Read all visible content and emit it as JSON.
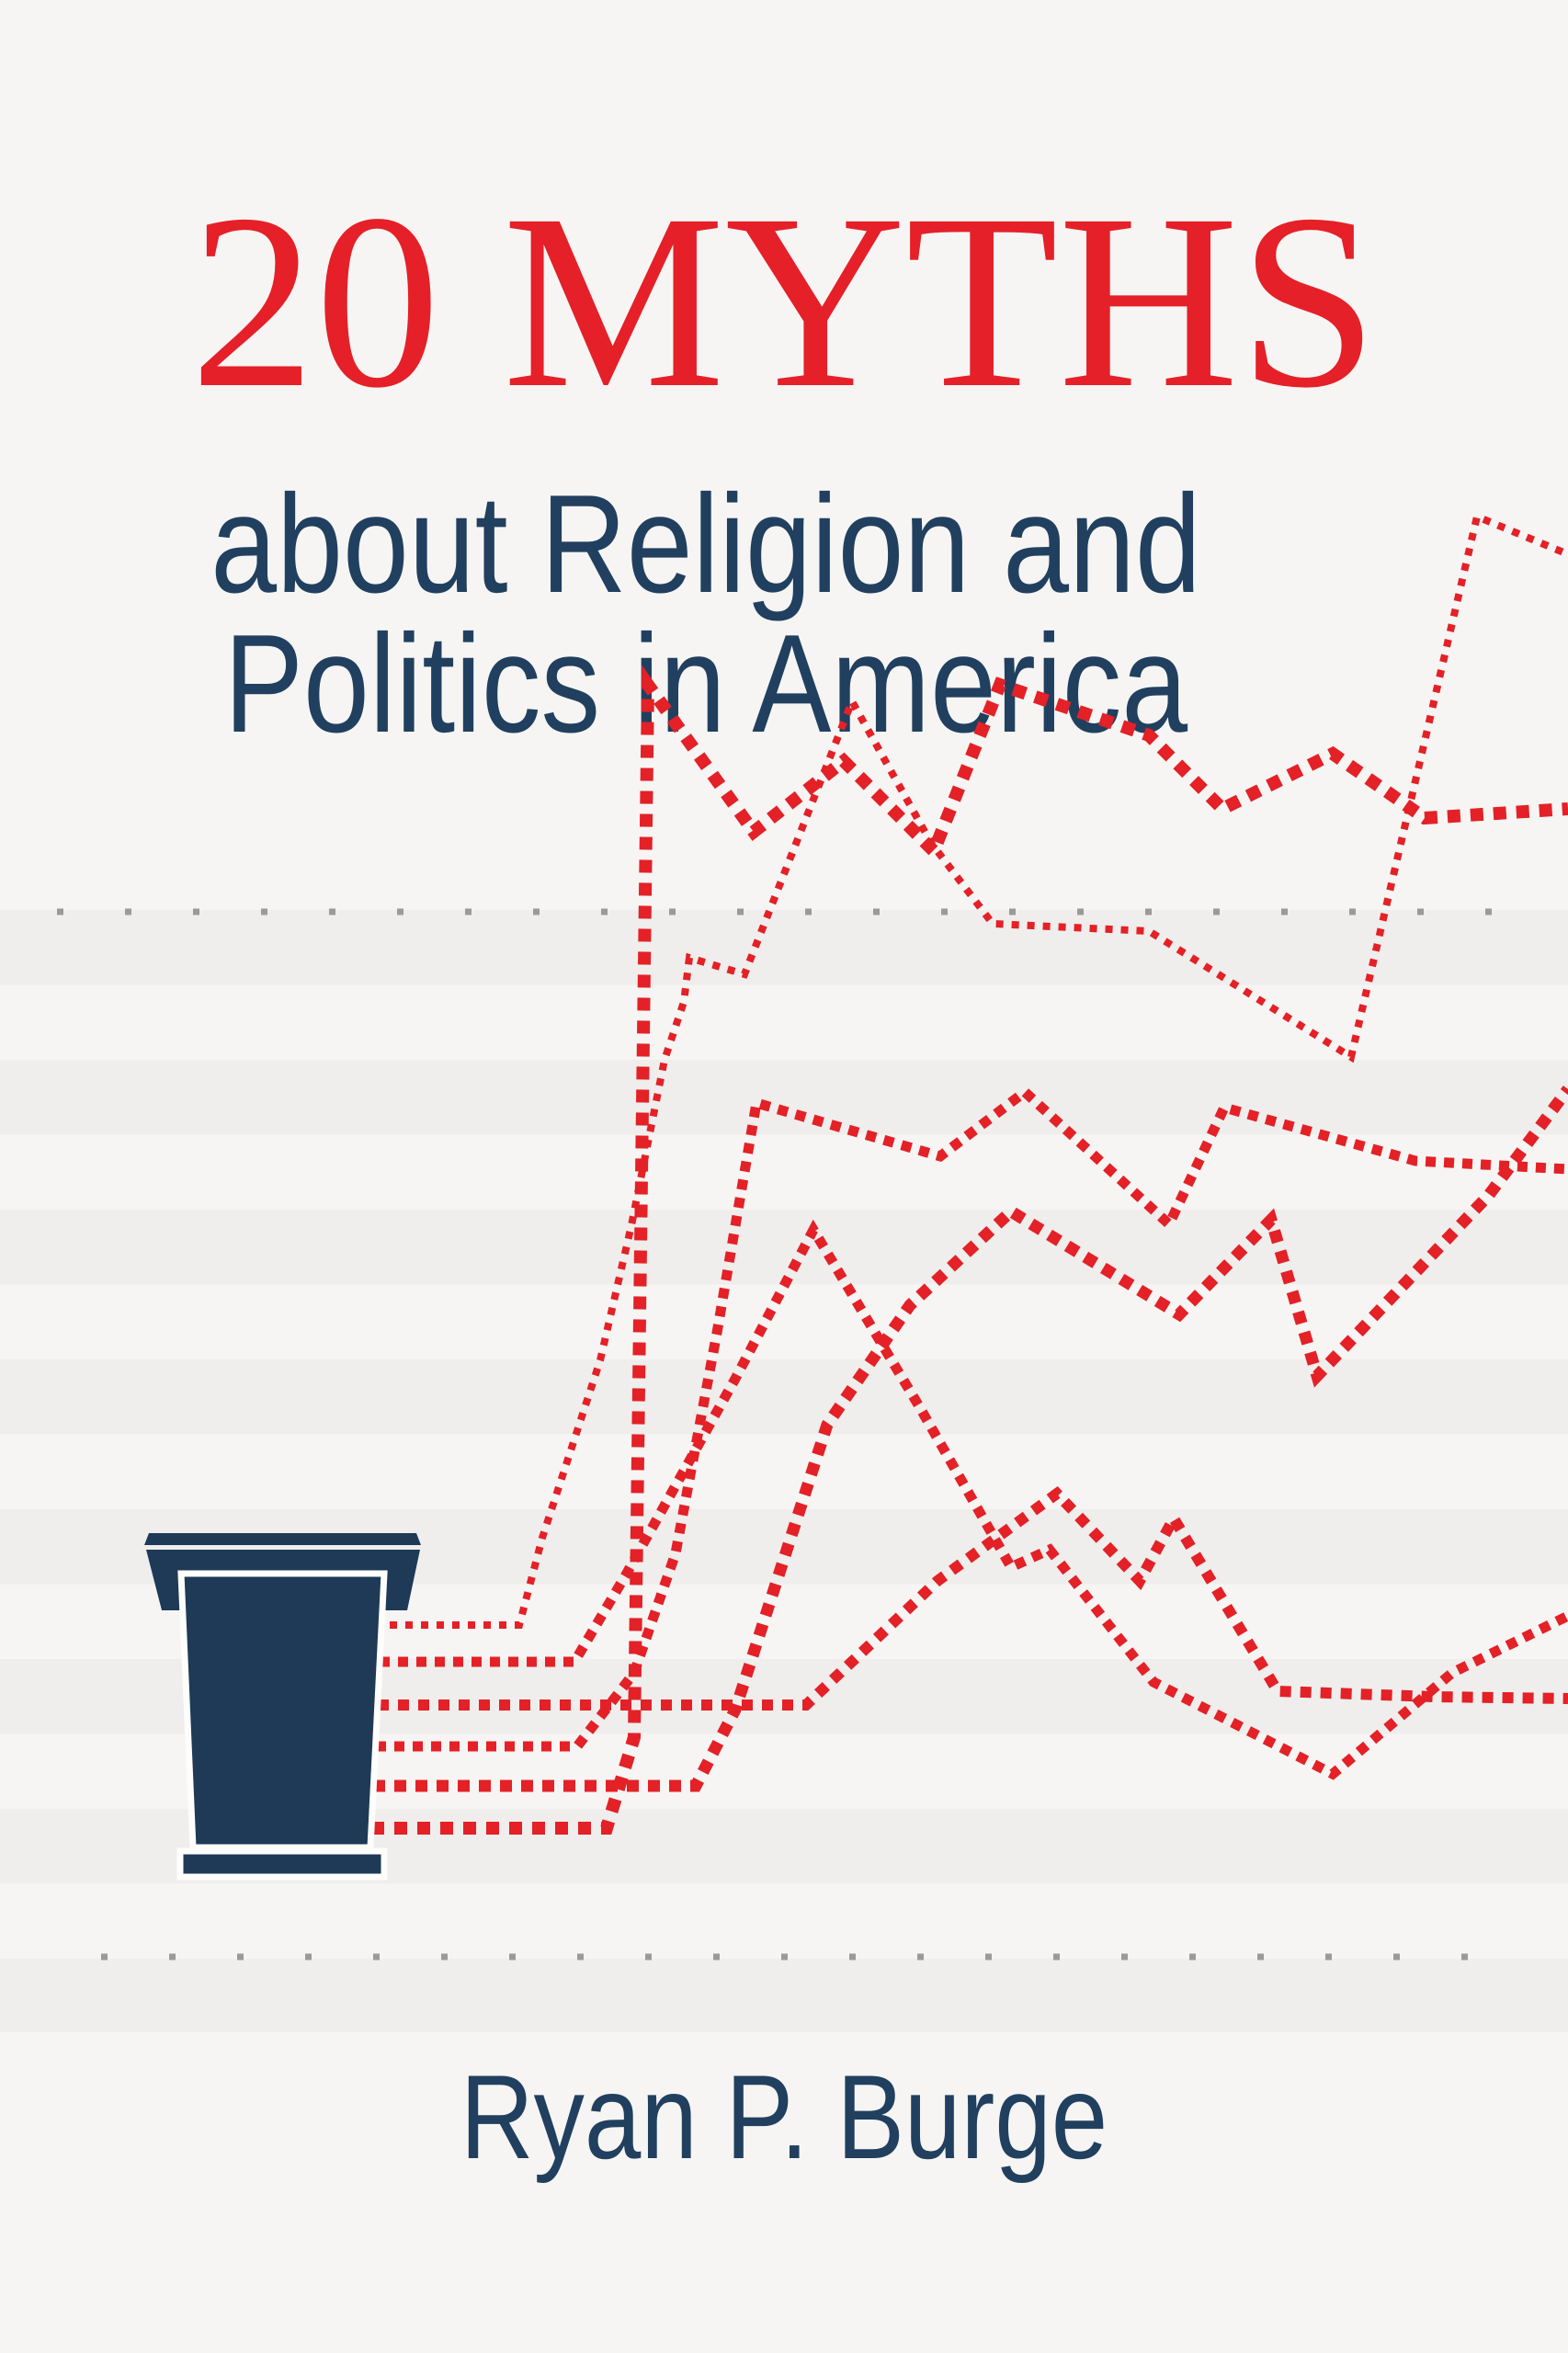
{
  "title": "20 MYTHS",
  "subtitle": {
    "line1": "about Religion and",
    "line2": "Politics in America"
  },
  "author": "Ryan P. Burge",
  "colors": {
    "background": "#f6f5f3",
    "stripe": "#efeeec",
    "title_red": "#e52028",
    "line_red": "#e32127",
    "navy_text": "#21405f",
    "podium_navy": "#1e3a57",
    "podium_outline": "#fdfdfc",
    "tick_gray": "#9a9a9a"
  },
  "chart_data": {
    "type": "line",
    "title": "",
    "xlabel": "",
    "ylabel": "",
    "note": "decorative dotted polylines radiating from podium; pixel coordinates in 1706x2560 space",
    "tick_rows": [
      {
        "name": "top-tick-row",
        "y": 992,
        "x1": 62,
        "x2": 1650,
        "width": 7,
        "dash": "7 67"
      },
      {
        "name": "bottom-tick-row",
        "y": 2129,
        "x1": 110,
        "x2": 1620,
        "width": 7,
        "dash": "7 67"
      }
    ],
    "series": [
      {
        "name": "line-1-thin",
        "width": 8,
        "dash": "8 9",
        "points": [
          [
            424,
            1768
          ],
          [
            565,
            1768
          ],
          [
            590,
            1673
          ],
          [
            653,
            1480
          ],
          [
            687,
            1333
          ],
          [
            723,
            1153
          ],
          [
            744,
            1090
          ],
          [
            750,
            1042
          ],
          [
            810,
            1060
          ],
          [
            927,
            763
          ],
          [
            1013,
            917
          ],
          [
            1080,
            1005
          ],
          [
            1250,
            1013
          ],
          [
            1470,
            1150
          ],
          [
            1607,
            562
          ],
          [
            1706,
            603
          ]
        ]
      },
      {
        "name": "line-2",
        "width": 11,
        "dash": "11 9",
        "points": [
          [
            413,
            1808
          ],
          [
            625,
            1808
          ],
          [
            680,
            1715
          ],
          [
            800,
            1500
          ],
          [
            885,
            1338
          ],
          [
            1000,
            1530
          ],
          [
            1100,
            1705
          ],
          [
            1142,
            1686
          ],
          [
            1255,
            1830
          ],
          [
            1450,
            1930
          ],
          [
            1580,
            1820
          ],
          [
            1706,
            1758
          ]
        ]
      },
      {
        "name": "line-3",
        "width": 12,
        "dash": "12 10",
        "points": [
          [
            411,
            1855
          ],
          [
            877,
            1855
          ],
          [
            1020,
            1720
          ],
          [
            1150,
            1625
          ],
          [
            1240,
            1720
          ],
          [
            1277,
            1652
          ],
          [
            1390,
            1840
          ],
          [
            1560,
            1846
          ],
          [
            1706,
            1848
          ]
        ]
      },
      {
        "name": "line-4",
        "width": 11,
        "dash": "11 9",
        "points": [
          [
            409,
            1900
          ],
          [
            628,
            1900
          ],
          [
            690,
            1820
          ],
          [
            735,
            1690
          ],
          [
            780,
            1450
          ],
          [
            823,
            1200
          ],
          [
            1023,
            1258
          ],
          [
            1115,
            1188
          ],
          [
            1272,
            1332
          ],
          [
            1332,
            1205
          ],
          [
            1540,
            1263
          ],
          [
            1706,
            1272
          ]
        ]
      },
      {
        "name": "line-5",
        "width": 13,
        "dash": "13 10",
        "points": [
          [
            406,
            1943
          ],
          [
            757,
            1943
          ],
          [
            800,
            1860
          ],
          [
            900,
            1550
          ],
          [
            990,
            1420
          ],
          [
            1100,
            1318
          ],
          [
            1283,
            1430
          ],
          [
            1383,
            1327
          ],
          [
            1433,
            1497
          ],
          [
            1620,
            1300
          ],
          [
            1706,
            1185
          ]
        ]
      },
      {
        "name": "line-6",
        "width": 14,
        "dash": "14 11",
        "points": [
          [
            404,
            1989
          ],
          [
            660,
            1989
          ],
          [
            690,
            1890
          ],
          [
            705,
            745
          ],
          [
            820,
            905
          ],
          [
            918,
            828
          ],
          [
            1016,
            926
          ],
          [
            1088,
            745
          ],
          [
            1250,
            800
          ],
          [
            1330,
            880
          ],
          [
            1450,
            820
          ],
          [
            1550,
            890
          ],
          [
            1706,
            880
          ]
        ]
      }
    ],
    "podium": {
      "parts": [
        {
          "name": "podium-top-slab",
          "points": [
            [
              162,
              1668
            ],
            [
              453,
              1668
            ],
            [
              458,
              1681
            ],
            [
              157,
              1681
            ]
          ],
          "outline": false
        },
        {
          "name": "podium-cap",
          "points": [
            [
              159,
              1686
            ],
            [
              457,
              1686
            ],
            [
              443,
              1752
            ],
            [
              176,
              1752
            ]
          ],
          "outline": false
        },
        {
          "name": "podium-body",
          "points": [
            [
              197,
              1712
            ],
            [
              418,
              1712
            ],
            [
              403,
              2010
            ],
            [
              210,
              2010
            ]
          ],
          "outline": true
        },
        {
          "name": "podium-base",
          "points": [
            [
              196,
              2014
            ],
            [
              418,
              2014
            ],
            [
              418,
              2042
            ],
            [
              196,
              2042
            ]
          ],
          "outline": true
        }
      ]
    }
  }
}
